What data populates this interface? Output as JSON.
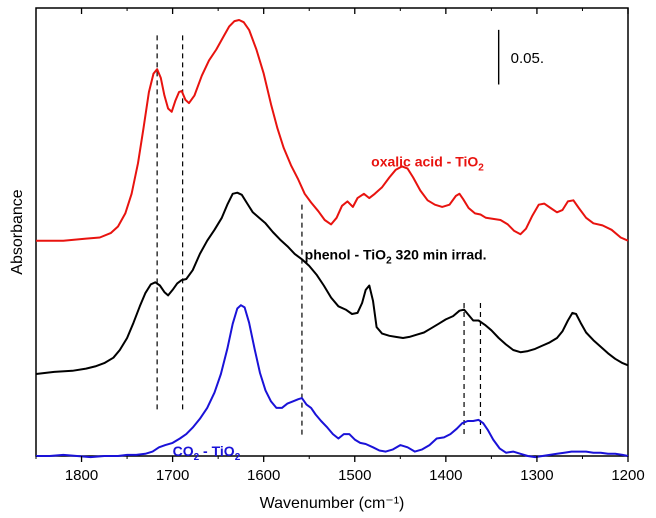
{
  "chart_data": {
    "type": "line",
    "xlabel": "Wavenumber (cm⁻¹)",
    "ylabel": "Absorbance",
    "xlim": [
      1850,
      1200
    ],
    "x_reversed": true,
    "x_ticks": [
      1800,
      1700,
      1600,
      1500,
      1400,
      1300,
      1200
    ],
    "y_ticks": [],
    "ylim": [
      0,
      0.41
    ],
    "grid": false,
    "scale_bar": {
      "label": "0.05.",
      "value": 0.05,
      "x": 1342,
      "y_top": 0.39
    },
    "reference_lines_x": [
      1717,
      1689,
      1558,
      1380,
      1362
    ],
    "series": [
      {
        "name": "oxalic acid - TiO₂",
        "color": "#e8130f",
        "label": {
          "main": "oxalic acid - TiO",
          "sub": "2",
          "tail": "",
          "x": 1482,
          "y": 0.265
        },
        "points": [
          [
            1850,
            0.197
          ],
          [
            1820,
            0.197
          ],
          [
            1795,
            0.199
          ],
          [
            1780,
            0.2
          ],
          [
            1768,
            0.204
          ],
          [
            1760,
            0.21
          ],
          [
            1752,
            0.222
          ],
          [
            1745,
            0.24
          ],
          [
            1738,
            0.268
          ],
          [
            1732,
            0.3
          ],
          [
            1726,
            0.333
          ],
          [
            1721,
            0.35
          ],
          [
            1717,
            0.354
          ],
          [
            1713,
            0.346
          ],
          [
            1709,
            0.33
          ],
          [
            1705,
            0.318
          ],
          [
            1701,
            0.315
          ],
          [
            1697,
            0.325
          ],
          [
            1693,
            0.333
          ],
          [
            1690,
            0.334
          ],
          [
            1686,
            0.326
          ],
          [
            1682,
            0.323
          ],
          [
            1676,
            0.33
          ],
          [
            1668,
            0.348
          ],
          [
            1660,
            0.362
          ],
          [
            1652,
            0.372
          ],
          [
            1644,
            0.384
          ],
          [
            1638,
            0.393
          ],
          [
            1632,
            0.398
          ],
          [
            1627,
            0.399
          ],
          [
            1622,
            0.397
          ],
          [
            1616,
            0.39
          ],
          [
            1608,
            0.372
          ],
          [
            1600,
            0.35
          ],
          [
            1592,
            0.322
          ],
          [
            1585,
            0.3
          ],
          [
            1578,
            0.282
          ],
          [
            1570,
            0.266
          ],
          [
            1562,
            0.253
          ],
          [
            1555,
            0.24
          ],
          [
            1548,
            0.232
          ],
          [
            1540,
            0.224
          ],
          [
            1533,
            0.216
          ],
          [
            1526,
            0.212
          ],
          [
            1520,
            0.218
          ],
          [
            1514,
            0.229
          ],
          [
            1508,
            0.233
          ],
          [
            1502,
            0.228
          ],
          [
            1497,
            0.236
          ],
          [
            1490,
            0.24
          ],
          [
            1484,
            0.236
          ],
          [
            1478,
            0.24
          ],
          [
            1470,
            0.246
          ],
          [
            1462,
            0.255
          ],
          [
            1455,
            0.262
          ],
          [
            1448,
            0.265
          ],
          [
            1442,
            0.263
          ],
          [
            1436,
            0.255
          ],
          [
            1428,
            0.243
          ],
          [
            1420,
            0.234
          ],
          [
            1412,
            0.23
          ],
          [
            1404,
            0.228
          ],
          [
            1396,
            0.23
          ],
          [
            1389,
            0.238
          ],
          [
            1385,
            0.24
          ],
          [
            1381,
            0.235
          ],
          [
            1375,
            0.227
          ],
          [
            1368,
            0.222
          ],
          [
            1362,
            0.221
          ],
          [
            1356,
            0.218
          ],
          [
            1348,
            0.217
          ],
          [
            1340,
            0.216
          ],
          [
            1332,
            0.212
          ],
          [
            1325,
            0.206
          ],
          [
            1318,
            0.203
          ],
          [
            1312,
            0.208
          ],
          [
            1305,
            0.22
          ],
          [
            1298,
            0.23
          ],
          [
            1292,
            0.231
          ],
          [
            1285,
            0.227
          ],
          [
            1278,
            0.223
          ],
          [
            1272,
            0.225
          ],
          [
            1266,
            0.233
          ],
          [
            1260,
            0.234
          ],
          [
            1254,
            0.227
          ],
          [
            1246,
            0.218
          ],
          [
            1238,
            0.213
          ],
          [
            1228,
            0.211
          ],
          [
            1218,
            0.207
          ],
          [
            1208,
            0.2
          ],
          [
            1200,
            0.197
          ]
        ]
      },
      {
        "name": "phenol - TiO₂ 320 min irrad.",
        "color": "#000000",
        "label": {
          "main": "phenol - TiO",
          "sub": "2",
          "tail": " 320 min irrad.",
          "x": 1555,
          "y": 0.18
        },
        "points": [
          [
            1850,
            0.075
          ],
          [
            1830,
            0.077
          ],
          [
            1810,
            0.078
          ],
          [
            1795,
            0.08
          ],
          [
            1785,
            0.082
          ],
          [
            1775,
            0.085
          ],
          [
            1765,
            0.09
          ],
          [
            1758,
            0.097
          ],
          [
            1750,
            0.108
          ],
          [
            1743,
            0.122
          ],
          [
            1736,
            0.137
          ],
          [
            1730,
            0.149
          ],
          [
            1724,
            0.157
          ],
          [
            1719,
            0.159
          ],
          [
            1714,
            0.156
          ],
          [
            1709,
            0.15
          ],
          [
            1705,
            0.147
          ],
          [
            1700,
            0.152
          ],
          [
            1695,
            0.158
          ],
          [
            1690,
            0.161
          ],
          [
            1685,
            0.162
          ],
          [
            1678,
            0.17
          ],
          [
            1670,
            0.185
          ],
          [
            1662,
            0.197
          ],
          [
            1654,
            0.207
          ],
          [
            1646,
            0.218
          ],
          [
            1640,
            0.23
          ],
          [
            1634,
            0.24
          ],
          [
            1629,
            0.241
          ],
          [
            1624,
            0.239
          ],
          [
            1618,
            0.231
          ],
          [
            1612,
            0.223
          ],
          [
            1605,
            0.218
          ],
          [
            1598,
            0.213
          ],
          [
            1590,
            0.205
          ],
          [
            1582,
            0.198
          ],
          [
            1574,
            0.192
          ],
          [
            1566,
            0.185
          ],
          [
            1558,
            0.18
          ],
          [
            1550,
            0.174
          ],
          [
            1542,
            0.166
          ],
          [
            1534,
            0.156
          ],
          [
            1526,
            0.145
          ],
          [
            1518,
            0.137
          ],
          [
            1510,
            0.134
          ],
          [
            1503,
            0.13
          ],
          [
            1497,
            0.131
          ],
          [
            1492,
            0.14
          ],
          [
            1488,
            0.152
          ],
          [
            1484,
            0.156
          ],
          [
            1480,
            0.142
          ],
          [
            1476,
            0.118
          ],
          [
            1470,
            0.112
          ],
          [
            1462,
            0.11
          ],
          [
            1455,
            0.109
          ],
          [
            1447,
            0.108
          ],
          [
            1440,
            0.109
          ],
          [
            1432,
            0.111
          ],
          [
            1424,
            0.113
          ],
          [
            1416,
            0.117
          ],
          [
            1408,
            0.121
          ],
          [
            1400,
            0.125
          ],
          [
            1392,
            0.128
          ],
          [
            1385,
            0.133
          ],
          [
            1380,
            0.134
          ],
          [
            1375,
            0.129
          ],
          [
            1370,
            0.124
          ],
          [
            1364,
            0.124
          ],
          [
            1357,
            0.12
          ],
          [
            1350,
            0.115
          ],
          [
            1342,
            0.108
          ],
          [
            1334,
            0.102
          ],
          [
            1326,
            0.097
          ],
          [
            1318,
            0.095
          ],
          [
            1310,
            0.096
          ],
          [
            1302,
            0.098
          ],
          [
            1294,
            0.101
          ],
          [
            1286,
            0.104
          ],
          [
            1278,
            0.108
          ],
          [
            1272,
            0.114
          ],
          [
            1266,
            0.124
          ],
          [
            1261,
            0.131
          ],
          [
            1257,
            0.13
          ],
          [
            1252,
            0.122
          ],
          [
            1246,
            0.113
          ],
          [
            1238,
            0.106
          ],
          [
            1230,
            0.1
          ],
          [
            1222,
            0.094
          ],
          [
            1214,
            0.089
          ],
          [
            1206,
            0.085
          ],
          [
            1200,
            0.083
          ]
        ]
      },
      {
        "name": "CO₂ - TiO₂",
        "color": "#1a12d8",
        "label": {
          "main": "CO",
          "sub": "2",
          "tail": " - TiO",
          "sub2": "2",
          "x": 1700,
          "y": 0.0
        },
        "points": [
          [
            1850,
            0.0
          ],
          [
            1835,
            0.0
          ],
          [
            1820,
            0.001
          ],
          [
            1805,
            0.0
          ],
          [
            1790,
            -0.001
          ],
          [
            1775,
            0.0
          ],
          [
            1760,
            0.0
          ],
          [
            1750,
            0.001
          ],
          [
            1740,
            0.001
          ],
          [
            1730,
            0.002
          ],
          [
            1722,
            0.004
          ],
          [
            1715,
            0.008
          ],
          [
            1708,
            0.01
          ],
          [
            1700,
            0.012
          ],
          [
            1692,
            0.016
          ],
          [
            1685,
            0.02
          ],
          [
            1678,
            0.026
          ],
          [
            1670,
            0.034
          ],
          [
            1662,
            0.044
          ],
          [
            1654,
            0.058
          ],
          [
            1647,
            0.075
          ],
          [
            1640,
            0.098
          ],
          [
            1634,
            0.121
          ],
          [
            1629,
            0.135
          ],
          [
            1625,
            0.138
          ],
          [
            1621,
            0.136
          ],
          [
            1616,
            0.122
          ],
          [
            1610,
            0.098
          ],
          [
            1604,
            0.076
          ],
          [
            1598,
            0.06
          ],
          [
            1592,
            0.05
          ],
          [
            1586,
            0.044
          ],
          [
            1580,
            0.044
          ],
          [
            1574,
            0.048
          ],
          [
            1568,
            0.05
          ],
          [
            1562,
            0.052
          ],
          [
            1558,
            0.053
          ],
          [
            1553,
            0.047
          ],
          [
            1548,
            0.044
          ],
          [
            1543,
            0.038
          ],
          [
            1537,
            0.032
          ],
          [
            1530,
            0.026
          ],
          [
            1524,
            0.02
          ],
          [
            1518,
            0.016
          ],
          [
            1512,
            0.02
          ],
          [
            1506,
            0.02
          ],
          [
            1500,
            0.015
          ],
          [
            1494,
            0.012
          ],
          [
            1488,
            0.011
          ],
          [
            1480,
            0.008
          ],
          [
            1473,
            0.005
          ],
          [
            1466,
            0.004
          ],
          [
            1458,
            0.006
          ],
          [
            1450,
            0.01
          ],
          [
            1442,
            0.008
          ],
          [
            1434,
            0.004
          ],
          [
            1426,
            0.006
          ],
          [
            1418,
            0.01
          ],
          [
            1410,
            0.016
          ],
          [
            1402,
            0.017
          ],
          [
            1395,
            0.02
          ],
          [
            1388,
            0.025
          ],
          [
            1382,
            0.03
          ],
          [
            1376,
            0.032
          ],
          [
            1370,
            0.032
          ],
          [
            1364,
            0.033
          ],
          [
            1359,
            0.03
          ],
          [
            1354,
            0.024
          ],
          [
            1348,
            0.015
          ],
          [
            1341,
            0.007
          ],
          [
            1334,
            0.003
          ],
          [
            1326,
            0.004
          ],
          [
            1318,
            0.002
          ],
          [
            1310,
            0.0
          ],
          [
            1302,
            -0.001
          ],
          [
            1294,
            0.0
          ],
          [
            1286,
            0.001
          ],
          [
            1278,
            0.002
          ],
          [
            1270,
            0.003
          ],
          [
            1262,
            0.004
          ],
          [
            1254,
            0.004
          ],
          [
            1246,
            0.004
          ],
          [
            1238,
            0.003
          ],
          [
            1230,
            0.003
          ],
          [
            1222,
            0.002
          ],
          [
            1214,
            0.002
          ],
          [
            1206,
            0.001
          ],
          [
            1200,
            0.0
          ]
        ]
      }
    ]
  }
}
